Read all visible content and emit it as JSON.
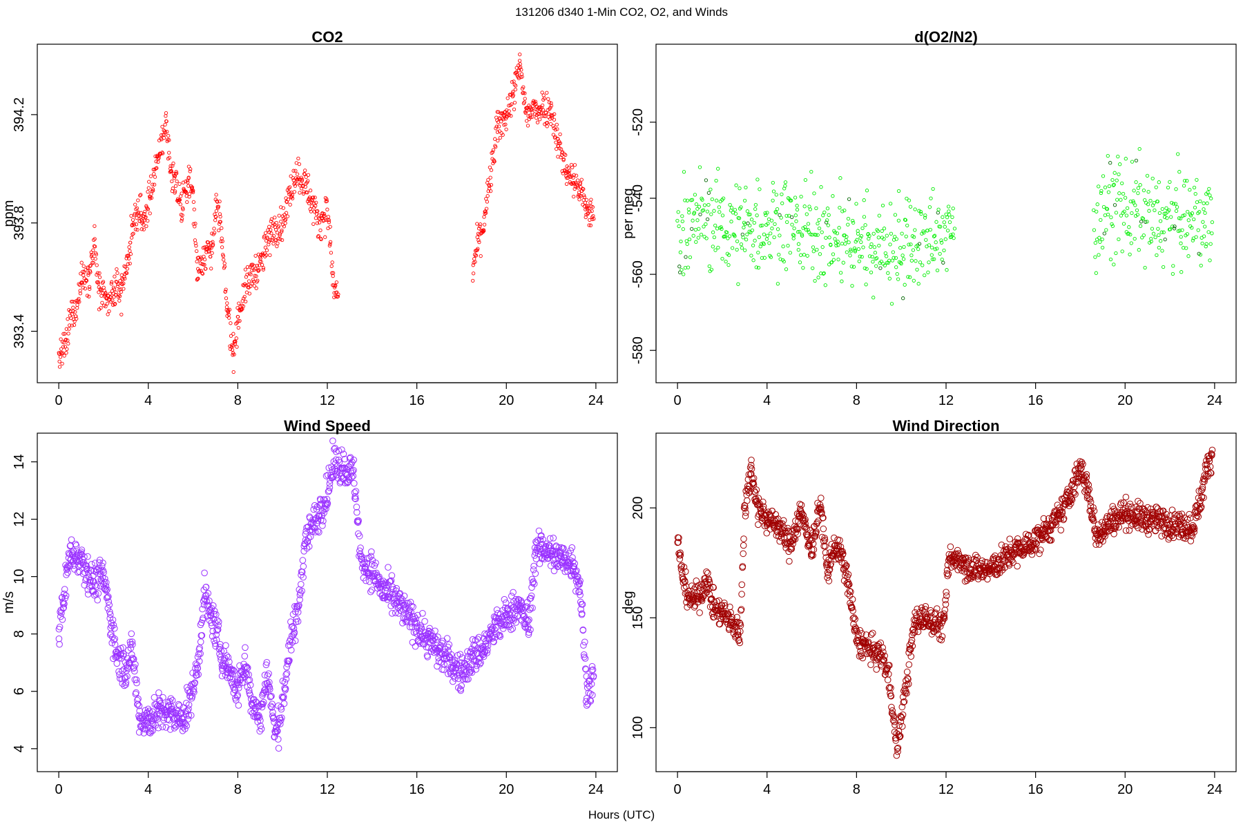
{
  "figure": {
    "suptitle": "131206   d340   1-Min CO2, O2, and Winds",
    "xlabel": "Hours (UTC)"
  },
  "chart_data": [
    {
      "id": "co2",
      "type": "scatter",
      "title": "CO2",
      "ylabel": "ppm",
      "color": "#ff0000",
      "marker": "small-open-circle",
      "xlim": [
        -0.96,
        24.96
      ],
      "ylim": [
        393.21,
        394.46
      ],
      "xticks": [
        "0",
        "4",
        "8",
        "12",
        "16",
        "20",
        "24"
      ],
      "yticks": [
        "393.4",
        "393.8",
        "394.2"
      ],
      "trend": [
        [
          0.0,
          393.3
        ],
        [
          0.3,
          393.34
        ],
        [
          0.6,
          393.48
        ],
        [
          0.8,
          393.48
        ],
        [
          1.0,
          393.6
        ],
        [
          1.4,
          393.62
        ],
        [
          1.6,
          393.72
        ],
        [
          1.8,
          393.55
        ],
        [
          2.1,
          393.5
        ],
        [
          2.5,
          393.55
        ],
        [
          2.8,
          393.55
        ],
        [
          3.2,
          393.72
        ],
        [
          3.5,
          393.85
        ],
        [
          3.8,
          393.8
        ],
        [
          4.8,
          394.17
        ],
        [
          5.0,
          394.0
        ],
        [
          5.2,
          393.95
        ],
        [
          5.5,
          393.85
        ],
        [
          5.8,
          393.97
        ],
        [
          6.0,
          393.9
        ],
        [
          6.2,
          393.62
        ],
        [
          6.6,
          393.7
        ],
        [
          6.8,
          393.7
        ],
        [
          7.0,
          393.85
        ],
        [
          7.2,
          393.82
        ],
        [
          7.5,
          393.5
        ],
        [
          7.8,
          393.32
        ],
        [
          8.0,
          393.45
        ],
        [
          8.3,
          393.55
        ],
        [
          8.7,
          393.62
        ],
        [
          9.0,
          393.64
        ],
        [
          9.3,
          393.72
        ],
        [
          9.6,
          393.78
        ],
        [
          10.0,
          393.8
        ],
        [
          10.3,
          393.9
        ],
        [
          10.6,
          393.99
        ],
        [
          11.0,
          393.95
        ],
        [
          11.3,
          393.88
        ],
        [
          11.6,
          393.8
        ],
        [
          12.0,
          393.85
        ],
        [
          12.3,
          393.55
        ],
        [
          12.5,
          393.52
        ],
        [
          18.5,
          393.62
        ],
        [
          18.7,
          393.72
        ],
        [
          19.0,
          393.8
        ],
        [
          19.6,
          394.15
        ],
        [
          20.0,
          394.2
        ],
        [
          20.4,
          394.3
        ],
        [
          20.6,
          394.38
        ],
        [
          20.9,
          394.2
        ],
        [
          21.3,
          394.22
        ],
        [
          21.6,
          394.23
        ],
        [
          22.0,
          394.22
        ],
        [
          22.3,
          394.1
        ],
        [
          22.7,
          393.99
        ],
        [
          23.0,
          393.96
        ],
        [
          23.3,
          393.92
        ],
        [
          23.6,
          393.85
        ],
        [
          23.9,
          393.82
        ]
      ]
    },
    {
      "id": "o2",
      "type": "scatter",
      "title": "d(O2/N2)",
      "ylabel": "per meg",
      "color": "#00ee00",
      "marker": "small-open-circle",
      "xlim": [
        -0.96,
        24.96
      ],
      "ylim": [
        -588.5,
        -499.5
      ],
      "xticks": [
        "0",
        "4",
        "8",
        "12",
        "16",
        "20",
        "24"
      ],
      "yticks": [
        "-580",
        "-560",
        "-540",
        "-520"
      ],
      "trend": [
        [
          0.0,
          -548
        ],
        [
          1.0,
          -545
        ],
        [
          2.0,
          -547
        ],
        [
          3.0,
          -549
        ],
        [
          4.0,
          -547
        ],
        [
          5.0,
          -545
        ],
        [
          6.0,
          -549
        ],
        [
          7.0,
          -550
        ],
        [
          8.0,
          -551
        ],
        [
          9.0,
          -552
        ],
        [
          10.0,
          -553
        ],
        [
          11.0,
          -552
        ],
        [
          12.0,
          -550
        ],
        [
          12.4,
          -550
        ],
        [
          18.6,
          -545
        ],
        [
          19.5,
          -541
        ],
        [
          20.5,
          -543
        ],
        [
          21.5,
          -547
        ],
        [
          22.5,
          -545
        ],
        [
          23.5,
          -546
        ],
        [
          23.9,
          -548
        ]
      ]
    },
    {
      "id": "wind_speed",
      "type": "scatter",
      "title": "Wind Speed",
      "ylabel": "m/s",
      "color": "#9a32ff",
      "marker": "large-open-circle",
      "xlim": [
        -0.96,
        24.96
      ],
      "ylim": [
        3.2,
        15.0
      ],
      "xticks": [
        "0",
        "4",
        "8",
        "12",
        "16",
        "20",
        "24"
      ],
      "yticks": [
        "4",
        "6",
        "8",
        "10",
        "12",
        "14"
      ],
      "trend": [
        [
          0.0,
          8.0
        ],
        [
          0.2,
          9.2
        ],
        [
          0.5,
          10.8
        ],
        [
          1.0,
          10.7
        ],
        [
          1.5,
          9.8
        ],
        [
          2.0,
          10.0
        ],
        [
          2.3,
          8.6
        ],
        [
          2.6,
          7.2
        ],
        [
          3.0,
          6.8
        ],
        [
          3.3,
          7.4
        ],
        [
          3.6,
          5.1
        ],
        [
          4.0,
          5.0
        ],
        [
          4.5,
          5.3
        ],
        [
          5.0,
          5.2
        ],
        [
          5.5,
          5.0
        ],
        [
          5.8,
          5.5
        ],
        [
          6.2,
          6.8
        ],
        [
          6.5,
          9.4
        ],
        [
          6.8,
          8.6
        ],
        [
          7.0,
          8.2
        ],
        [
          7.3,
          7.2
        ],
        [
          7.6,
          6.8
        ],
        [
          8.0,
          6.0
        ],
        [
          8.3,
          7.0
        ],
        [
          8.7,
          5.5
        ],
        [
          9.0,
          5.0
        ],
        [
          9.3,
          6.8
        ],
        [
          9.7,
          4.3
        ],
        [
          10.0,
          5.6
        ],
        [
          10.3,
          7.5
        ],
        [
          10.7,
          8.8
        ],
        [
          11.0,
          11.3
        ],
        [
          11.5,
          12.0
        ],
        [
          12.0,
          12.9
        ],
        [
          12.3,
          14.0
        ],
        [
          12.8,
          13.8
        ],
        [
          13.2,
          13.5
        ],
        [
          13.5,
          10.5
        ],
        [
          14.0,
          10.2
        ],
        [
          14.5,
          9.5
        ],
        [
          15.0,
          9.2
        ],
        [
          15.5,
          8.7
        ],
        [
          16.0,
          8.3
        ],
        [
          16.5,
          7.8
        ],
        [
          17.0,
          7.4
        ],
        [
          17.5,
          7.0
        ],
        [
          18.0,
          6.6
        ],
        [
          18.5,
          7.2
        ],
        [
          19.0,
          7.5
        ],
        [
          19.5,
          8.2
        ],
        [
          20.0,
          8.6
        ],
        [
          20.5,
          9.0
        ],
        [
          21.0,
          8.3
        ],
        [
          21.3,
          10.8
        ],
        [
          21.7,
          11.0
        ],
        [
          22.0,
          10.8
        ],
        [
          22.5,
          10.6
        ],
        [
          23.0,
          10.5
        ],
        [
          23.3,
          9.6
        ],
        [
          23.6,
          6.0
        ],
        [
          23.9,
          6.5
        ]
      ]
    },
    {
      "id": "wind_direction",
      "type": "scatter",
      "title": "Wind Direction",
      "ylabel": "deg",
      "color": "#a00000",
      "marker": "large-open-circle",
      "xlim": [
        -0.96,
        24.96
      ],
      "ylim": [
        80,
        234
      ],
      "xticks": [
        "0",
        "4",
        "8",
        "12",
        "16",
        "20",
        "24"
      ],
      "yticks": [
        "100",
        "150",
        "200"
      ],
      "trend": [
        [
          0.0,
          185
        ],
        [
          0.3,
          165
        ],
        [
          0.6,
          158
        ],
        [
          1.0,
          160
        ],
        [
          1.3,
          168
        ],
        [
          1.6,
          155
        ],
        [
          2.0,
          152
        ],
        [
          2.4,
          148
        ],
        [
          2.8,
          143
        ],
        [
          3.0,
          200
        ],
        [
          3.3,
          218
        ],
        [
          3.6,
          200
        ],
        [
          4.0,
          195
        ],
        [
          4.5,
          192
        ],
        [
          5.0,
          183
        ],
        [
          5.5,
          198
        ],
        [
          6.0,
          182
        ],
        [
          6.4,
          202
        ],
        [
          6.7,
          170
        ],
        [
          7.0,
          183
        ],
        [
          7.3,
          178
        ],
        [
          7.6,
          168
        ],
        [
          8.0,
          140
        ],
        [
          8.4,
          137
        ],
        [
          8.8,
          134
        ],
        [
          9.2,
          132
        ],
        [
          9.5,
          120
        ],
        [
          9.8,
          90
        ],
        [
          10.2,
          118
        ],
        [
          10.6,
          148
        ],
        [
          11.0,
          150
        ],
        [
          11.5,
          148
        ],
        [
          11.9,
          146
        ],
        [
          12.1,
          175
        ],
        [
          12.5,
          178
        ],
        [
          13.0,
          173
        ],
        [
          13.5,
          172
        ],
        [
          14.0,
          172
        ],
        [
          14.5,
          176
        ],
        [
          15.0,
          180
        ],
        [
          15.5,
          182
        ],
        [
          16.0,
          185
        ],
        [
          16.5,
          190
        ],
        [
          17.0,
          195
        ],
        [
          17.5,
          205
        ],
        [
          18.0,
          218
        ],
        [
          18.3,
          210
        ],
        [
          18.7,
          188
        ],
        [
          19.0,
          190
        ],
        [
          19.5,
          195
        ],
        [
          20.0,
          198
        ],
        [
          20.5,
          196
        ],
        [
          21.0,
          195
        ],
        [
          21.5,
          194
        ],
        [
          22.0,
          193
        ],
        [
          22.5,
          192
        ],
        [
          23.0,
          191
        ],
        [
          23.4,
          205
        ],
        [
          23.7,
          220
        ],
        [
          23.9,
          225
        ]
      ]
    }
  ]
}
